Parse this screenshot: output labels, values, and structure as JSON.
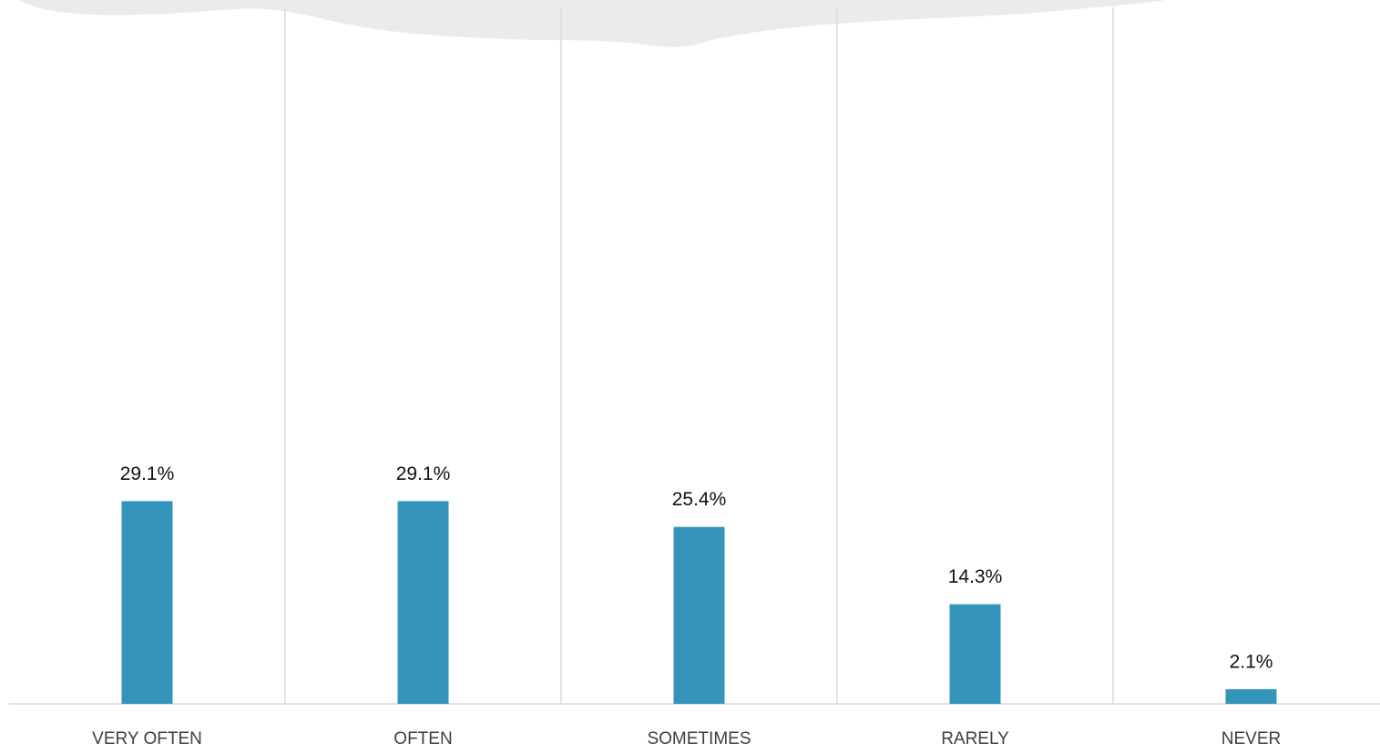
{
  "chart_data": {
    "type": "bar",
    "categories": [
      "VERY OFTEN",
      "OFTEN",
      "SOMETIMES",
      "RARELY",
      "NEVER"
    ],
    "values": [
      29.1,
      29.1,
      25.4,
      14.3,
      2.1
    ],
    "value_labels": [
      "29.1%",
      "29.1%",
      "25.4%",
      "14.3%",
      "2.1%"
    ],
    "color": "#3594bb",
    "ylim": [
      0,
      100
    ]
  }
}
